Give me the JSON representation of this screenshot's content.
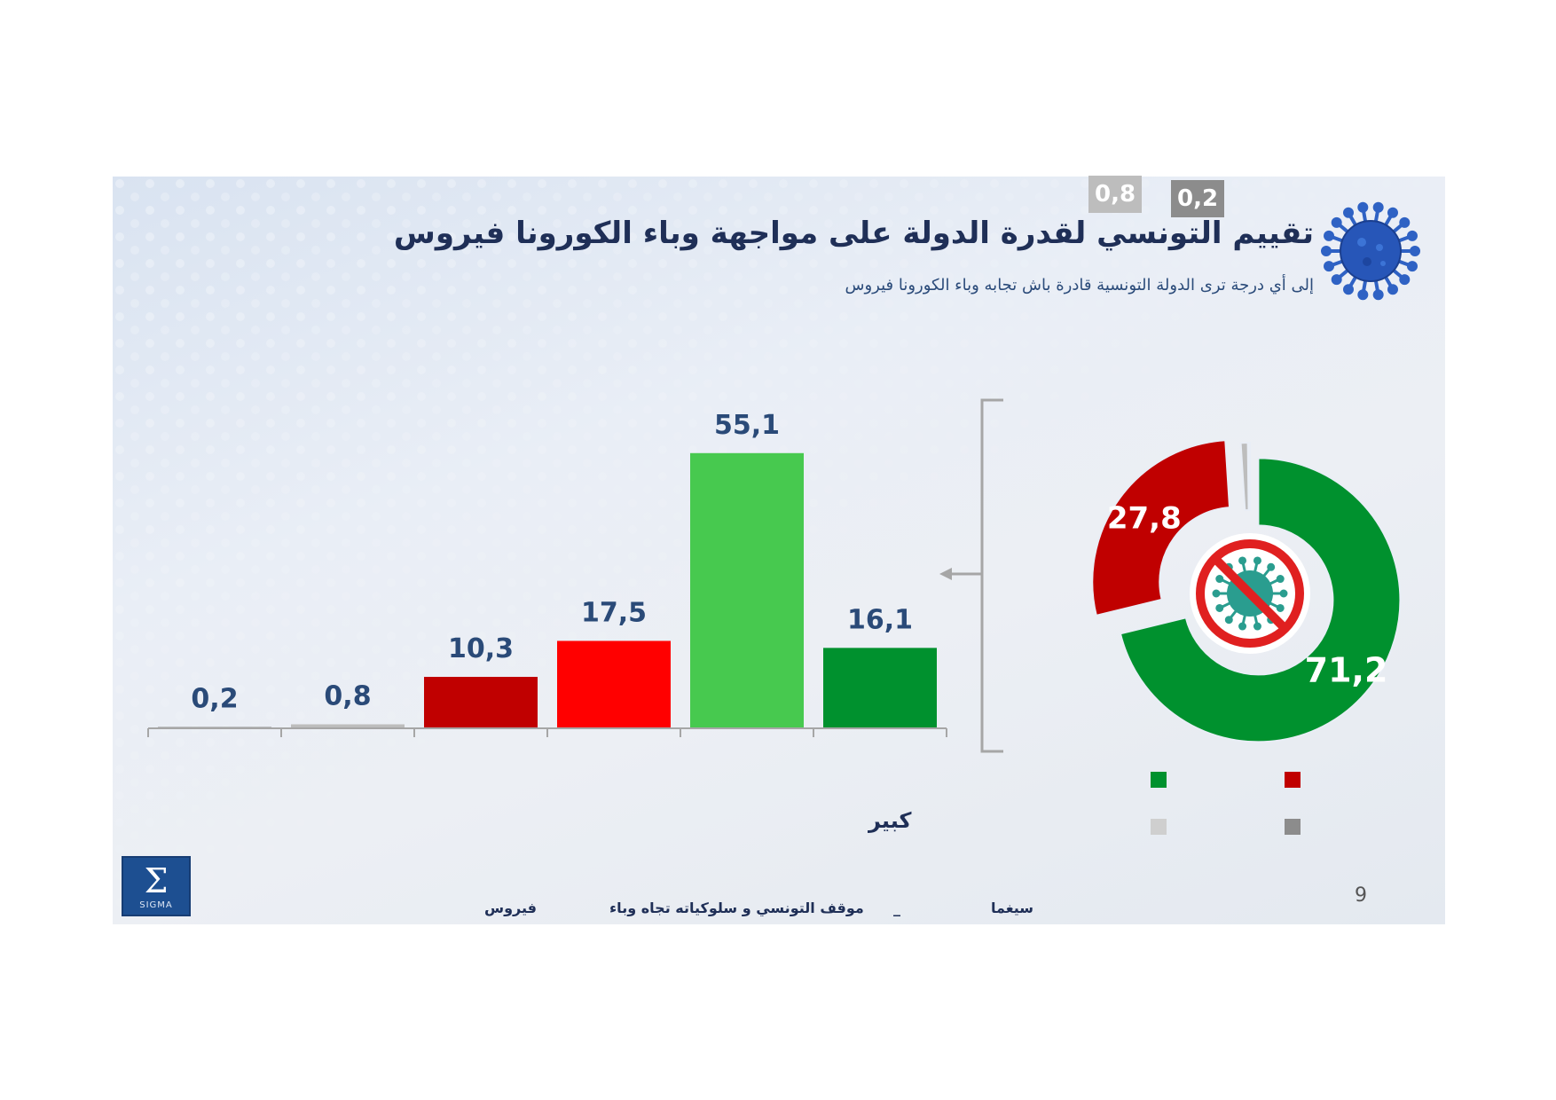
{
  "header": {
    "title": "تقييم التونسي لقدرة الدولة على مواجهة وباء الكورونا فيروس",
    "subtitle": "إلى أي درجة ترى الدولة التونسية قادرة باش تجابه وباء الكورونا فيروس"
  },
  "icons": {
    "header_icon": "coronavirus-icon",
    "pie_center_icon": "no-virus-icon",
    "bracket_arrow": "arrow-left-icon"
  },
  "chart_data": [
    {
      "type": "bar",
      "categories": [
        "",
        "",
        "",
        "",
        "",
        "كبير"
      ],
      "values": [
        0.2,
        0.8,
        10.3,
        17.5,
        55.1,
        16.1
      ],
      "labels": [
        "0,2",
        "0,8",
        "10,3",
        "17,5",
        "55,1",
        "16,1"
      ],
      "colors": [
        "#8c8c8c",
        "#bdbdbd",
        "#c00000",
        "#ff0000",
        "#47c94f",
        "#00912e"
      ],
      "ylim": [
        0,
        60
      ],
      "grid": false
    },
    {
      "type": "pie",
      "values": [
        71.2,
        27.8,
        0.8,
        0.2
      ],
      "labels": [
        "71,2",
        "27,8",
        "0,8",
        "0,2"
      ],
      "colors": [
        "#00912e",
        "#c00000",
        "#bdbdbd",
        "#8c8c8c"
      ],
      "style": "donut-exploded"
    }
  ],
  "legend": {
    "swatch_colors": [
      "#00912e",
      "#c00000",
      "#cfcfcf",
      "#8c8c8c"
    ]
  },
  "footer": {
    "brand": "سيغما",
    "separator": "_",
    "middle": "موقف التونسي و سلوكياته تجاه وباء",
    "last_word": "فيروس",
    "logo_text": "SIGMA"
  },
  "page_number": "9"
}
